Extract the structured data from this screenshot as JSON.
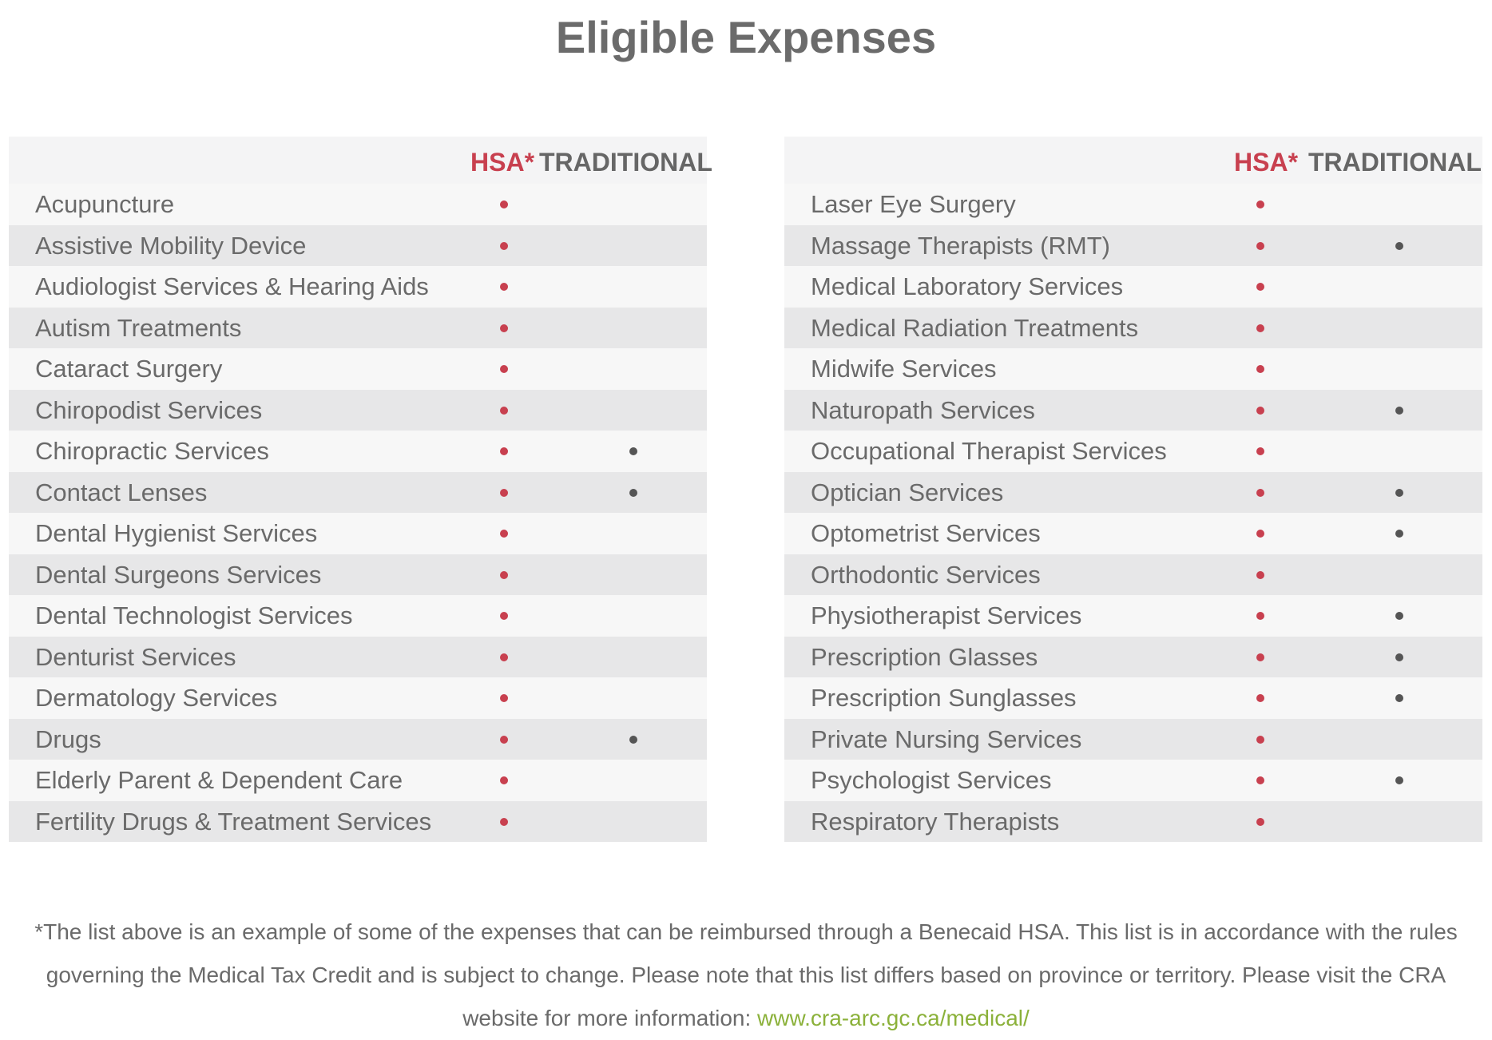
{
  "page": {
    "title": "Eligible Expenses"
  },
  "tables": {
    "left": {
      "headers": {
        "hsa": "HSA*",
        "traditional": "TRADITIONAL"
      },
      "rows": [
        {
          "label": "Acupuncture",
          "hsa": true,
          "traditional": false
        },
        {
          "label": "Assistive Mobility Device",
          "hsa": true,
          "traditional": false
        },
        {
          "label": "Audiologist Services & Hearing Aids",
          "hsa": true,
          "traditional": false
        },
        {
          "label": "Autism Treatments",
          "hsa": true,
          "traditional": false
        },
        {
          "label": "Cataract Surgery",
          "hsa": true,
          "traditional": false
        },
        {
          "label": "Chiropodist Services",
          "hsa": true,
          "traditional": false
        },
        {
          "label": "Chiropractic Services",
          "hsa": true,
          "traditional": true
        },
        {
          "label": "Contact Lenses",
          "hsa": true,
          "traditional": true
        },
        {
          "label": "Dental Hygienist Services",
          "hsa": true,
          "traditional": false
        },
        {
          "label": "Dental Surgeons Services",
          "hsa": true,
          "traditional": false
        },
        {
          "label": "Dental Technologist Services",
          "hsa": true,
          "traditional": false
        },
        {
          "label": "Denturist Services",
          "hsa": true,
          "traditional": false
        },
        {
          "label": "Dermatology Services",
          "hsa": true,
          "traditional": false
        },
        {
          "label": "Drugs",
          "hsa": true,
          "traditional": true
        },
        {
          "label": "Elderly Parent & Dependent Care",
          "hsa": true,
          "traditional": false
        },
        {
          "label": "Fertility Drugs & Treatment Services",
          "hsa": true,
          "traditional": false
        }
      ]
    },
    "right": {
      "headers": {
        "hsa": "HSA*",
        "traditional": "TRADITIONAL"
      },
      "rows": [
        {
          "label": "Laser Eye Surgery",
          "hsa": true,
          "traditional": false
        },
        {
          "label": "Massage Therapists (RMT)",
          "hsa": true,
          "traditional": true
        },
        {
          "label": "Medical Laboratory Services",
          "hsa": true,
          "traditional": false
        },
        {
          "label": "Medical Radiation Treatments",
          "hsa": true,
          "traditional": false
        },
        {
          "label": "Midwife Services",
          "hsa": true,
          "traditional": false
        },
        {
          "label": "Naturopath Services",
          "hsa": true,
          "traditional": true
        },
        {
          "label": "Occupational Therapist Services",
          "hsa": true,
          "traditional": false
        },
        {
          "label": "Optician Services",
          "hsa": true,
          "traditional": true
        },
        {
          "label": "Optometrist Services",
          "hsa": true,
          "traditional": true
        },
        {
          "label": "Orthodontic Services",
          "hsa": true,
          "traditional": false
        },
        {
          "label": "Physiotherapist Services",
          "hsa": true,
          "traditional": true
        },
        {
          "label": "Prescription Glasses",
          "hsa": true,
          "traditional": true
        },
        {
          "label": "Prescription Sunglasses",
          "hsa": true,
          "traditional": true
        },
        {
          "label": "Private Nursing Services",
          "hsa": true,
          "traditional": false
        },
        {
          "label": "Psychologist Services",
          "hsa": true,
          "traditional": true
        },
        {
          "label": "Respiratory Therapists",
          "hsa": true,
          "traditional": false
        }
      ]
    }
  },
  "footnote": {
    "line1": "*The list above is an example of some of the expenses that can be reimbursed through a Benecaid HSA. This list is in accordance with the rules",
    "line2": "governing the Medical Tax Credit and is subject to change. Please note that this list differs based on province or territory. Please visit the CRA",
    "line3_prefix": "website for more information: ",
    "link": "www.cra-arc.gc.ca/medical/"
  },
  "colors": {
    "hsa_accent": "#c8404f",
    "traditional_dot": "#555555",
    "link": "#8bb13a",
    "row_light": "#f7f7f7",
    "row_dark": "#e7e7e8"
  }
}
